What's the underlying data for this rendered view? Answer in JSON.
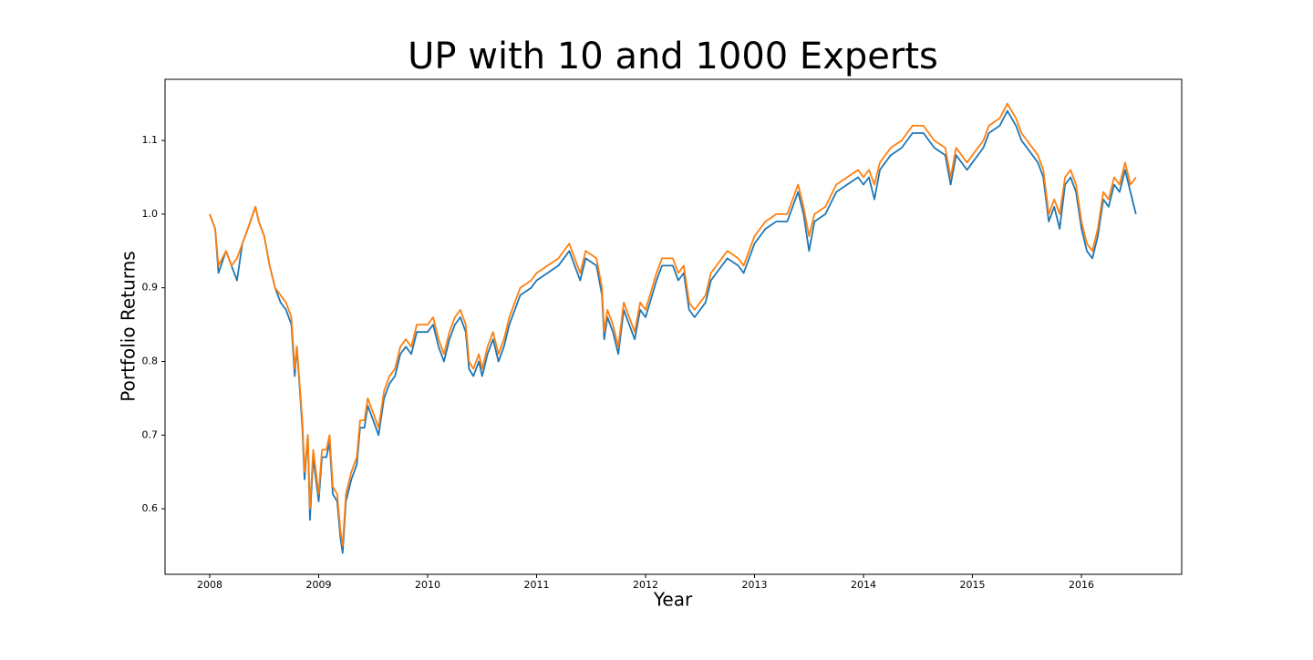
{
  "chart_data": {
    "type": "line",
    "title": "UP with 10 and 1000 Experts",
    "x_label": "Year",
    "y_label": "Portfolio Returns",
    "x": [
      2008.0,
      2008.05,
      2008.08,
      2008.15,
      2008.2,
      2008.25,
      2008.3,
      2008.35,
      2008.42,
      2008.45,
      2008.5,
      2008.55,
      2008.6,
      2008.65,
      2008.7,
      2008.75,
      2008.78,
      2008.8,
      2008.85,
      2008.87,
      2008.9,
      2008.92,
      2008.95,
      2009.0,
      2009.03,
      2009.07,
      2009.1,
      2009.13,
      2009.17,
      2009.2,
      2009.22,
      2009.25,
      2009.3,
      2009.35,
      2009.38,
      2009.42,
      2009.45,
      2009.5,
      2009.55,
      2009.6,
      2009.65,
      2009.7,
      2009.75,
      2009.8,
      2009.85,
      2009.9,
      2010.0,
      2010.05,
      2010.1,
      2010.15,
      2010.2,
      2010.25,
      2010.3,
      2010.35,
      2010.38,
      2010.42,
      2010.47,
      2010.5,
      2010.55,
      2010.6,
      2010.65,
      2010.7,
      2010.75,
      2010.8,
      2010.85,
      2010.95,
      2011.0,
      2011.1,
      2011.2,
      2011.3,
      2011.35,
      2011.4,
      2011.45,
      2011.55,
      2011.6,
      2011.62,
      2011.65,
      2011.7,
      2011.75,
      2011.8,
      2011.85,
      2011.9,
      2011.95,
      2012.0,
      2012.1,
      2012.15,
      2012.25,
      2012.3,
      2012.35,
      2012.4,
      2012.45,
      2012.5,
      2012.55,
      2012.6,
      2012.7,
      2012.75,
      2012.85,
      2012.9,
      2013.0,
      2013.1,
      2013.2,
      2013.3,
      2013.4,
      2013.45,
      2013.5,
      2013.55,
      2013.65,
      2013.75,
      2013.85,
      2013.95,
      2014.0,
      2014.05,
      2014.1,
      2014.15,
      2014.25,
      2014.35,
      2014.45,
      2014.55,
      2014.65,
      2014.75,
      2014.8,
      2014.85,
      2014.95,
      2015.0,
      2015.1,
      2015.15,
      2015.25,
      2015.32,
      2015.4,
      2015.45,
      2015.5,
      2015.55,
      2015.6,
      2015.65,
      2015.7,
      2015.75,
      2015.8,
      2015.85,
      2015.9,
      2015.95,
      2016.0,
      2016.05,
      2016.1,
      2016.15,
      2016.2,
      2016.25,
      2016.3,
      2016.35,
      2016.4,
      2016.45,
      2016.5
    ],
    "series": [
      {
        "color": "#1f77b4",
        "values": [
          1.0,
          0.98,
          0.92,
          0.95,
          0.93,
          0.91,
          0.96,
          0.98,
          1.01,
          0.99,
          0.97,
          0.93,
          0.9,
          0.88,
          0.87,
          0.85,
          0.78,
          0.82,
          0.71,
          0.64,
          0.7,
          0.585,
          0.67,
          0.61,
          0.67,
          0.67,
          0.69,
          0.62,
          0.61,
          0.56,
          0.54,
          0.61,
          0.64,
          0.66,
          0.71,
          0.71,
          0.74,
          0.72,
          0.7,
          0.75,
          0.77,
          0.78,
          0.81,
          0.82,
          0.81,
          0.84,
          0.84,
          0.85,
          0.82,
          0.8,
          0.83,
          0.85,
          0.86,
          0.84,
          0.79,
          0.78,
          0.8,
          0.78,
          0.81,
          0.83,
          0.8,
          0.82,
          0.85,
          0.87,
          0.89,
          0.9,
          0.91,
          0.92,
          0.93,
          0.95,
          0.93,
          0.91,
          0.94,
          0.93,
          0.89,
          0.83,
          0.86,
          0.84,
          0.81,
          0.87,
          0.85,
          0.83,
          0.87,
          0.86,
          0.91,
          0.93,
          0.93,
          0.91,
          0.92,
          0.87,
          0.86,
          0.87,
          0.88,
          0.91,
          0.93,
          0.94,
          0.93,
          0.92,
          0.96,
          0.98,
          0.99,
          0.99,
          1.03,
          1.0,
          0.95,
          0.99,
          1.0,
          1.03,
          1.04,
          1.05,
          1.04,
          1.05,
          1.02,
          1.06,
          1.08,
          1.09,
          1.11,
          1.11,
          1.09,
          1.08,
          1.04,
          1.08,
          1.06,
          1.07,
          1.09,
          1.11,
          1.12,
          1.14,
          1.12,
          1.1,
          1.09,
          1.08,
          1.07,
          1.05,
          0.99,
          1.01,
          0.98,
          1.04,
          1.05,
          1.03,
          0.98,
          0.95,
          0.94,
          0.97,
          1.02,
          1.01,
          1.04,
          1.03,
          1.06,
          1.03,
          1.0
        ]
      },
      {
        "color": "#ff7f0e",
        "values": [
          1.0,
          0.98,
          0.93,
          0.95,
          0.93,
          0.94,
          0.96,
          0.98,
          1.01,
          0.99,
          0.97,
          0.93,
          0.9,
          0.89,
          0.88,
          0.86,
          0.79,
          0.82,
          0.72,
          0.65,
          0.7,
          0.6,
          0.68,
          0.62,
          0.68,
          0.68,
          0.7,
          0.63,
          0.62,
          0.57,
          0.55,
          0.62,
          0.65,
          0.67,
          0.72,
          0.72,
          0.75,
          0.73,
          0.71,
          0.76,
          0.78,
          0.79,
          0.82,
          0.83,
          0.82,
          0.85,
          0.85,
          0.86,
          0.83,
          0.81,
          0.84,
          0.86,
          0.87,
          0.85,
          0.8,
          0.79,
          0.81,
          0.79,
          0.82,
          0.84,
          0.81,
          0.83,
          0.86,
          0.88,
          0.9,
          0.91,
          0.92,
          0.93,
          0.94,
          0.96,
          0.94,
          0.92,
          0.95,
          0.94,
          0.9,
          0.84,
          0.87,
          0.85,
          0.82,
          0.88,
          0.86,
          0.84,
          0.88,
          0.87,
          0.92,
          0.94,
          0.94,
          0.92,
          0.93,
          0.88,
          0.87,
          0.88,
          0.89,
          0.92,
          0.94,
          0.95,
          0.94,
          0.93,
          0.97,
          0.99,
          1.0,
          1.0,
          1.04,
          1.01,
          0.97,
          1.0,
          1.01,
          1.04,
          1.05,
          1.06,
          1.05,
          1.06,
          1.04,
          1.07,
          1.09,
          1.1,
          1.12,
          1.12,
          1.1,
          1.09,
          1.05,
          1.09,
          1.07,
          1.08,
          1.1,
          1.12,
          1.13,
          1.15,
          1.13,
          1.11,
          1.1,
          1.09,
          1.08,
          1.06,
          1.0,
          1.02,
          1.0,
          1.05,
          1.06,
          1.04,
          0.99,
          0.96,
          0.95,
          0.98,
          1.03,
          1.02,
          1.05,
          1.04,
          1.07,
          1.04,
          1.05
        ]
      }
    ],
    "xlim": [
      2007.59,
      2016.92
    ],
    "xticks": [
      2008,
      2009,
      2010,
      2011,
      2012,
      2013,
      2014,
      2015,
      2016
    ],
    "ylim": [
      0.511,
      1.183
    ],
    "yticks": [
      0.6,
      0.7,
      0.8,
      0.9,
      {
        "value": 1,
        "label": "1.0"
      },
      1.1
    ]
  }
}
